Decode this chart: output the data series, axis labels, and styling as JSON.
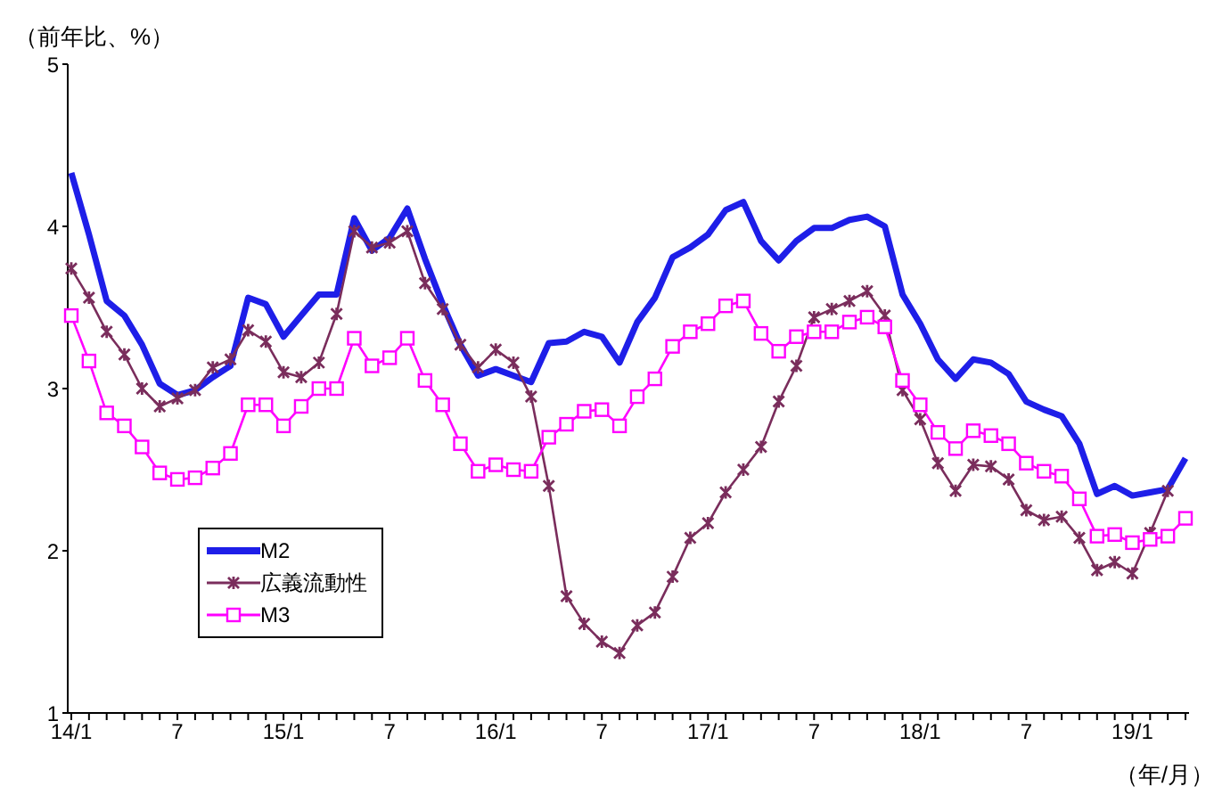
{
  "chart_data": {
    "type": "line",
    "ylabel": "（前年比、%）",
    "xlabel": "（年/月）",
    "categories": [
      "14/1",
      null,
      null,
      null,
      null,
      null,
      "7",
      null,
      null,
      null,
      null,
      null,
      "15/1",
      null,
      null,
      null,
      null,
      null,
      "7",
      null,
      null,
      null,
      null,
      null,
      "16/1",
      null,
      null,
      null,
      null,
      null,
      "7",
      null,
      null,
      null,
      null,
      null,
      "17/1",
      null,
      null,
      null,
      null,
      null,
      "7",
      null,
      null,
      null,
      null,
      null,
      "18/1",
      null,
      null,
      null,
      null,
      null,
      "7",
      null,
      null,
      null,
      null,
      null,
      "19/1",
      null,
      null,
      null
    ],
    "ylim": [
      1,
      5
    ],
    "yticks": [
      1,
      2,
      3,
      4,
      5
    ],
    "grid": false,
    "legend": "bottom left",
    "series": [
      {
        "name": "M2",
        "color": "#1e1ee8",
        "marker": "none",
        "values": [
          4.33,
          3.95,
          3.54,
          3.45,
          3.27,
          3.03,
          2.96,
          2.99,
          3.07,
          3.14,
          3.56,
          3.52,
          3.32,
          3.45,
          3.58,
          3.58,
          4.05,
          3.85,
          3.93,
          4.11,
          3.8,
          3.52,
          3.27,
          3.08,
          3.12,
          3.08,
          3.04,
          3.28,
          3.29,
          3.35,
          3.32,
          3.16,
          3.41,
          3.56,
          3.81,
          3.87,
          3.95,
          4.1,
          4.15,
          3.91,
          3.79,
          3.91,
          3.99,
          3.99,
          4.04,
          4.06,
          4.0,
          3.58,
          3.4,
          3.18,
          3.06,
          3.18,
          3.16,
          3.09,
          2.92,
          2.87,
          2.83,
          2.66,
          2.35,
          2.4,
          2.34,
          2.36,
          2.38,
          2.57
        ]
      },
      {
        "name": "広義流動性",
        "color": "#7a2d5c",
        "marker": "cross",
        "values": [
          3.74,
          3.56,
          3.35,
          3.21,
          3.0,
          2.89,
          2.94,
          2.99,
          3.13,
          3.18,
          3.36,
          3.29,
          3.1,
          3.07,
          3.16,
          3.46,
          3.97,
          3.87,
          3.9,
          3.97,
          3.65,
          3.49,
          3.27,
          3.13,
          3.24,
          3.16,
          2.95,
          2.4,
          1.72,
          1.55,
          1.44,
          1.37,
          1.54,
          1.62,
          1.84,
          2.08,
          2.17,
          2.36,
          2.5,
          2.64,
          2.92,
          3.14,
          3.44,
          3.49,
          3.54,
          3.6,
          3.45,
          2.99,
          2.81,
          2.54,
          2.37,
          2.53,
          2.52,
          2.44,
          2.25,
          2.19,
          2.21,
          2.08,
          1.88,
          1.93,
          1.86,
          2.11,
          2.37,
          null
        ]
      },
      {
        "name": "M3",
        "color": "#ff00ff",
        "marker": "square",
        "values": [
          3.45,
          3.17,
          2.85,
          2.77,
          2.64,
          2.48,
          2.44,
          2.45,
          2.51,
          2.6,
          2.9,
          2.9,
          2.77,
          2.89,
          3.0,
          3.0,
          3.31,
          3.14,
          3.19,
          3.31,
          3.05,
          2.9,
          2.66,
          2.49,
          2.53,
          2.5,
          2.49,
          2.7,
          2.78,
          2.86,
          2.87,
          2.77,
          2.95,
          3.06,
          3.26,
          3.35,
          3.4,
          3.51,
          3.54,
          3.34,
          3.23,
          3.32,
          3.35,
          3.35,
          3.41,
          3.44,
          3.38,
          3.05,
          2.9,
          2.73,
          2.63,
          2.74,
          2.71,
          2.66,
          2.54,
          2.49,
          2.46,
          2.32,
          2.09,
          2.1,
          2.05,
          2.07,
          2.09,
          2.2
        ]
      }
    ]
  }
}
